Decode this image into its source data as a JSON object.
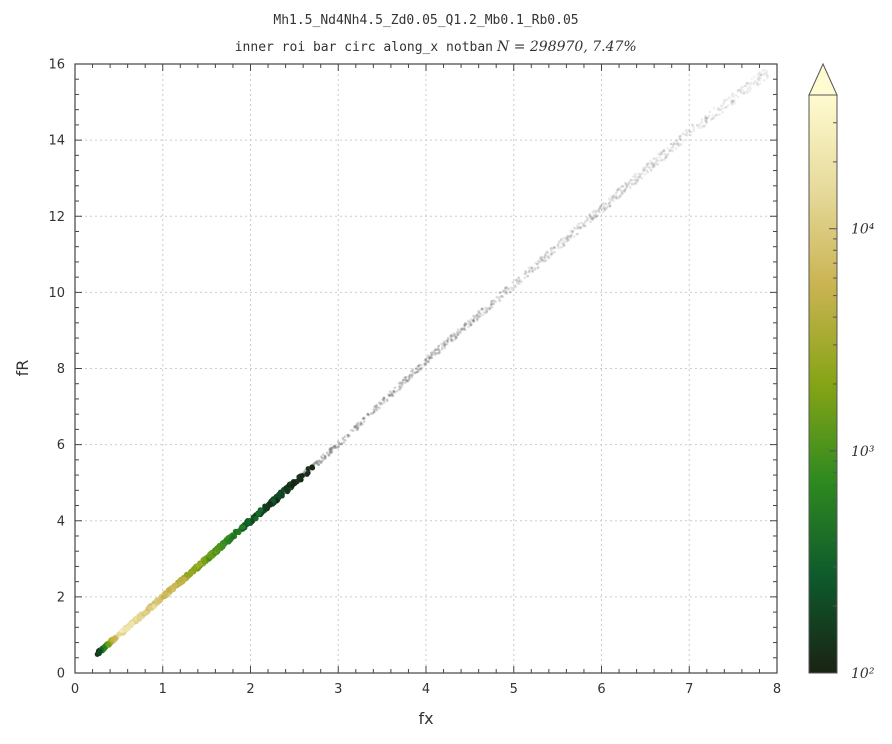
{
  "chart_data": {
    "type": "hexbin",
    "title_line1": "Mh1.5_Nd4Nh4.5_Zd0.05_Q1.2_Mb0.1_Rb0.05",
    "title_line2_prefix": "inner roi bar circ along_x notban",
    "title_line2_stats": "N = 298970,   7.47%",
    "xlabel": "fx",
    "ylabel": "fR",
    "xlim": [
      0,
      8
    ],
    "ylim": [
      0,
      16
    ],
    "x_ticks": [
      "0",
      "1",
      "2",
      "3",
      "4",
      "5",
      "6",
      "7",
      "8"
    ],
    "y_ticks": [
      "0",
      "2",
      "4",
      "6",
      "8",
      "10",
      "12",
      "14",
      "16"
    ],
    "grid": true,
    "colorbar": {
      "scale": "log",
      "range": [
        100,
        40000
      ],
      "ticks": [
        {
          "label": "10²",
          "value": 100
        },
        {
          "label": "10³",
          "value": 1000
        },
        {
          "label": "10⁴",
          "value": 10000
        }
      ],
      "extend": "max",
      "colormap": [
        "#1a2313",
        "#0e5a2c",
        "#2f8a1f",
        "#86a416",
        "#c9b350",
        "#e6d99a",
        "#fffbd0"
      ]
    },
    "density_band": {
      "description_points": [
        {
          "fx": 0.25,
          "fR": 0.5,
          "count": 100
        },
        {
          "fx": 0.5,
          "fR": 1.0,
          "count": 20000
        },
        {
          "fx": 1.0,
          "fR": 2.0,
          "count": 8000
        },
        {
          "fx": 1.5,
          "fR": 3.0,
          "count": 1500
        },
        {
          "fx": 2.0,
          "fR": 4.0,
          "count": 300
        },
        {
          "fx": 3.0,
          "fR": 6.0,
          "count": 40
        },
        {
          "fx": 4.0,
          "fR": 8.2,
          "count": 10
        },
        {
          "fx": 5.0,
          "fR": 10.2,
          "count": 5
        },
        {
          "fx": 6.0,
          "fR": 12.2,
          "count": 3
        },
        {
          "fx": 7.0,
          "fR": 14.2,
          "count": 2
        },
        {
          "fx": 7.9,
          "fR": 15.8,
          "count": 1
        }
      ]
    }
  }
}
